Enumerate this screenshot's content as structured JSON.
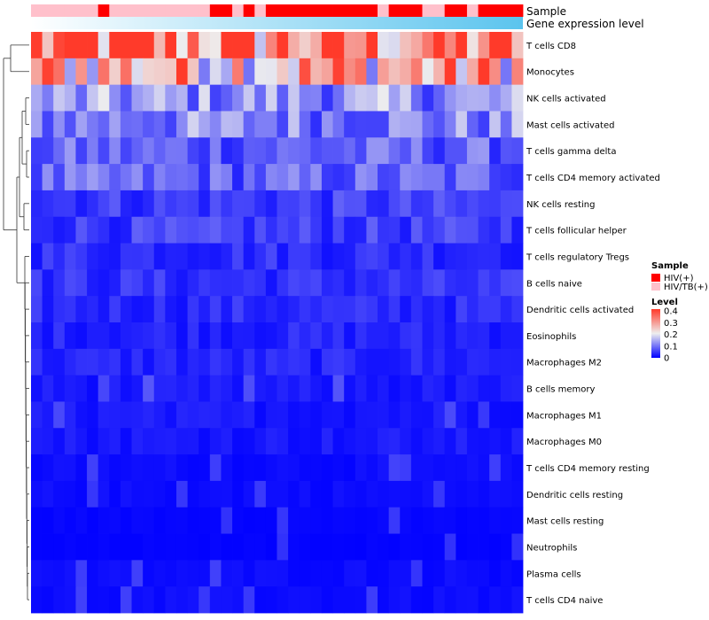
{
  "chart_data": {
    "type": "heatmap",
    "n_samples": 44,
    "rows": [
      "T cells CD8",
      "Monocytes",
      "NK cells activated",
      "Mast cells activated",
      "T cells gamma delta",
      "T cells CD4 memory activated",
      "NK cells resting",
      "T cells follicular helper",
      "T cells regulatory  Tregs",
      "B cells naive",
      "Dendritic cells activated",
      "Eosinophils",
      "Macrophages M2",
      "B cells memory",
      "Macrophages M1",
      "Macrophages M0",
      "T cells CD4 memory resting",
      "Dendritic cells resting",
      "Mast cells resting",
      "Neutrophils",
      "Plasma cells",
      "T cells CD4 naive"
    ],
    "row_means": [
      0.33,
      0.27,
      0.12,
      0.11,
      0.08,
      0.08,
      0.05,
      0.05,
      0.04,
      0.04,
      0.035,
      0.03,
      0.03,
      0.02,
      0.02,
      0.02,
      0.01,
      0.01,
      0.005,
      0.003,
      0.01,
      0.01
    ],
    "annotations": [
      {
        "name": "Sample",
        "values": [
          "HIV/TB(+)",
          "HIV/TB(+)",
          "HIV/TB(+)",
          "HIV/TB(+)",
          "HIV/TB(+)",
          "HIV/TB(+)",
          "HIV(+)",
          "HIV/TB(+)",
          "HIV/TB(+)",
          "HIV/TB(+)",
          "HIV/TB(+)",
          "HIV/TB(+)",
          "HIV/TB(+)",
          "HIV/TB(+)",
          "HIV/TB(+)",
          "HIV/TB(+)",
          "HIV(+)",
          "HIV(+)",
          "HIV/TB(+)",
          "HIV(+)",
          "HIV/TB(+)",
          "HIV(+)",
          "HIV(+)",
          "HIV(+)",
          "HIV(+)",
          "HIV(+)",
          "HIV(+)",
          "HIV(+)",
          "HIV(+)",
          "HIV(+)",
          "HIV(+)",
          "HIV/TB(+)",
          "HIV(+)",
          "HIV(+)",
          "HIV(+)",
          "HIV/TB(+)",
          "HIV/TB(+)",
          "HIV(+)",
          "HIV(+)",
          "HIV/TB(+)",
          "HIV(+)",
          "HIV(+)",
          "HIV(+)",
          "HIV(+)"
        ]
      },
      {
        "name": "Gene expression level",
        "start_color": "#ffffff",
        "end_color": "#5bc4ee"
      }
    ],
    "legend": {
      "sample_title": "Sample",
      "sample_items": [
        {
          "label": "HIV(+)",
          "color": "#ff0000"
        },
        {
          "label": "HIV/TB(+)",
          "color": "#ffc0cb"
        }
      ],
      "level_title": "Level",
      "level_ticks": [
        "0.4",
        "0.3",
        "0.2",
        "0.1",
        "0"
      ],
      "level_min": 0,
      "level_max": 0.4,
      "colors": {
        "low": "#0000ff",
        "mid": "#eeeeee",
        "high": "#ff3a2a"
      },
      "position": "right"
    },
    "dendrogram": "rows-left"
  }
}
